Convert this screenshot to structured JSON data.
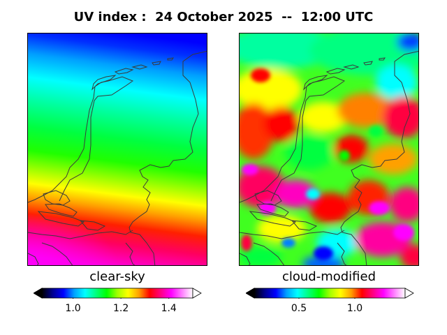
{
  "title": "UV index :  24 October 2025  --  12:00 UTC",
  "panels": [
    {
      "label": "clear-sky",
      "colorbar": {
        "ticks": [
          "1.0",
          "1.2",
          "1.4"
        ],
        "tick_values": [
          1.0,
          1.2,
          1.4
        ],
        "range": [
          0.87,
          1.5
        ],
        "extend": "both"
      }
    },
    {
      "label": "cloud-modified",
      "colorbar": {
        "ticks": [
          "0.5",
          "1.0"
        ],
        "tick_values": [
          0.5,
          1.0
        ],
        "range": [
          0.1,
          1.45
        ],
        "extend": "both"
      }
    }
  ],
  "colormap": [
    "#000000",
    "#000090",
    "#0000ff",
    "#00a0ff",
    "#00ffff",
    "#00ff80",
    "#00ff00",
    "#a0ff00",
    "#ffff00",
    "#ffa000",
    "#ff0000",
    "#ff0080",
    "#ff00ff",
    "#ff80ff",
    "#ffffff"
  ],
  "colors": {
    "coastline": "#3a3a3a"
  }
}
